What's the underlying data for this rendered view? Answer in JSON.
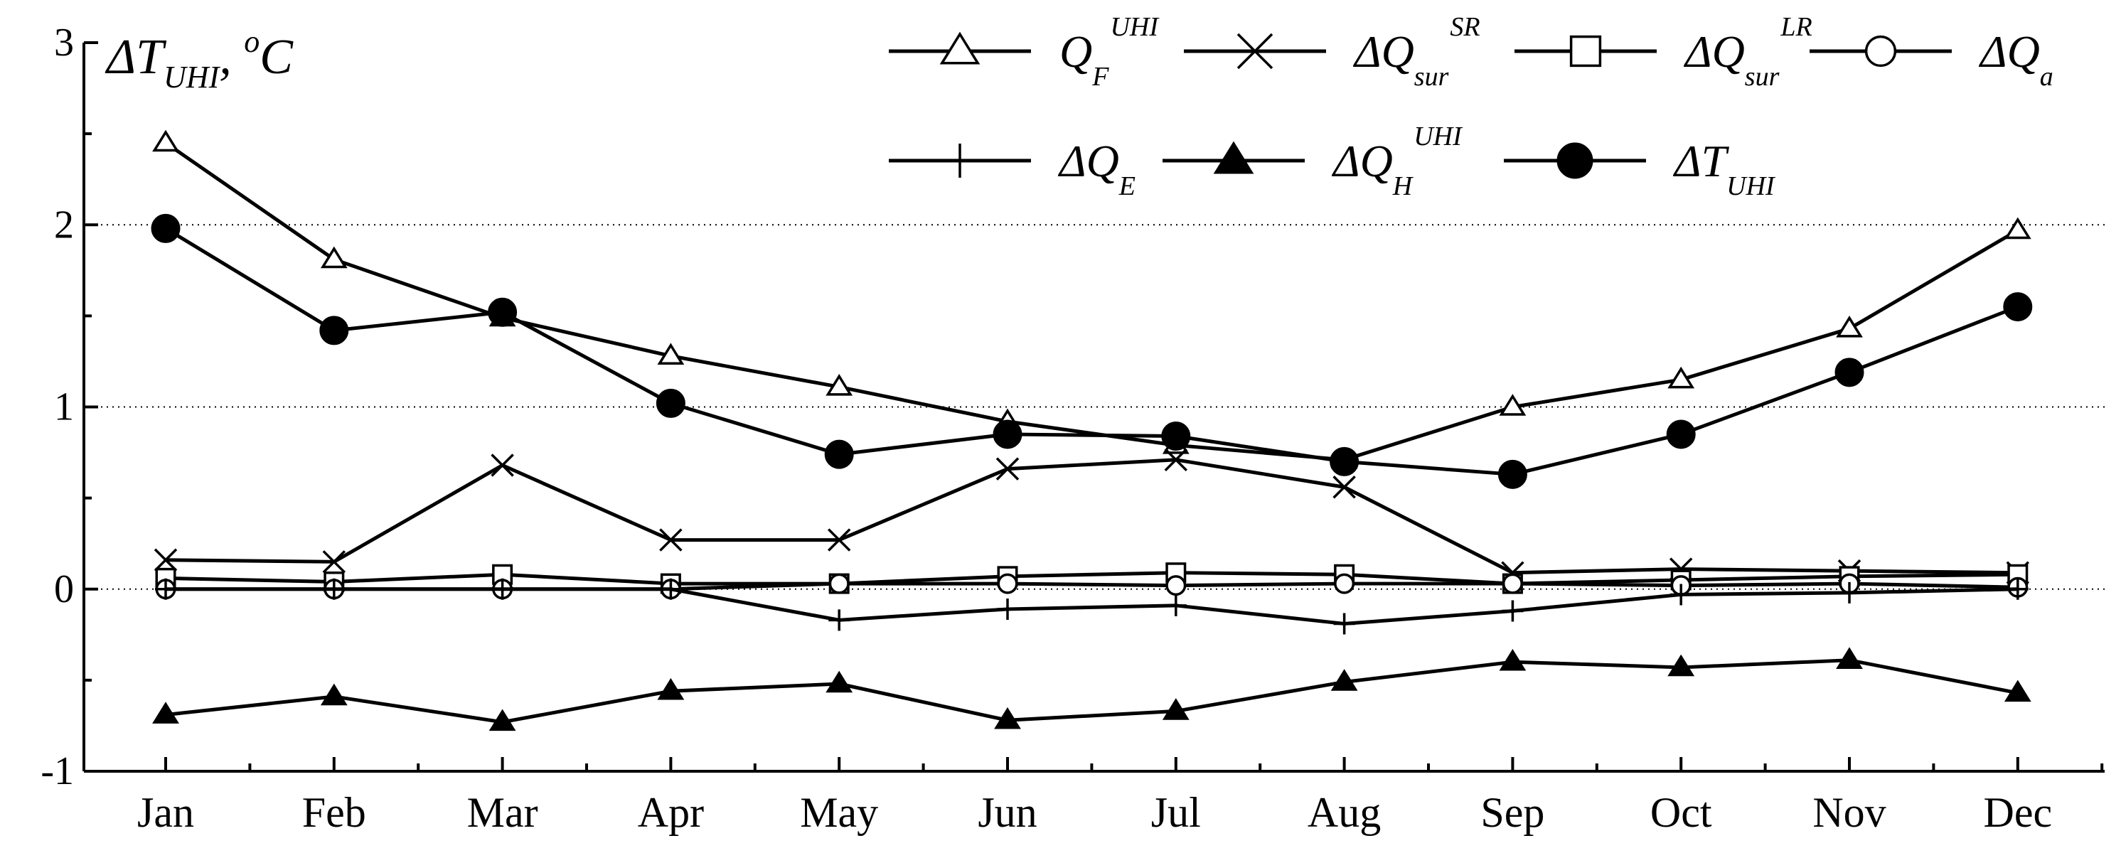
{
  "chart_data": {
    "type": "line",
    "ylabel": {
      "main": "ΔT",
      "sub": "UHI",
      "sep": ", ",
      "sup": "o",
      "unit": "C"
    },
    "xlabel": "",
    "categories": [
      "Jan",
      "Feb",
      "Mar",
      "Apr",
      "May",
      "Jun",
      "Jul",
      "Aug",
      "Sep",
      "Oct",
      "Nov",
      "Dec"
    ],
    "ylim": [
      -1,
      3
    ],
    "yticks": [
      -1,
      0,
      1,
      2,
      3
    ],
    "yticks_labels": [
      "-1",
      "0",
      "1",
      "2",
      "3"
    ],
    "gridlines_dotted_at": [
      0,
      1,
      2
    ],
    "legend_position": "top-right",
    "series": [
      {
        "key": "QF",
        "name": {
          "main": "Q",
          "sub": "F",
          "sup": "UHI"
        },
        "marker": "triangle-open",
        "values": [
          2.45,
          1.81,
          1.49,
          1.28,
          1.11,
          0.92,
          0.79,
          0.71,
          1.0,
          1.15,
          1.43,
          1.97
        ]
      },
      {
        "key": "Qsur_SR",
        "name": {
          "main": "ΔQ",
          "sub": "sur",
          "sup": "SR"
        },
        "marker": "cross",
        "values": [
          0.16,
          0.15,
          0.68,
          0.27,
          0.27,
          0.66,
          0.71,
          0.56,
          0.09,
          0.11,
          0.1,
          0.09
        ]
      },
      {
        "key": "Qsur_LR",
        "name": {
          "main": "ΔQ",
          "sub": "sur",
          "sup": "LR"
        },
        "marker": "square-open",
        "values": [
          0.06,
          0.04,
          0.08,
          0.03,
          0.03,
          0.07,
          0.09,
          0.08,
          0.03,
          0.05,
          0.07,
          0.08
        ]
      },
      {
        "key": "Qa",
        "name": {
          "main": "ΔQ",
          "sub": "a",
          "sup": ""
        },
        "marker": "circle-open",
        "values": [
          0.0,
          0.0,
          0.0,
          0.0,
          0.03,
          0.03,
          0.02,
          0.03,
          0.03,
          0.02,
          0.03,
          0.01
        ]
      },
      {
        "key": "QE",
        "name": {
          "main": "ΔQ",
          "sub": "E",
          "sup": ""
        },
        "marker": "plus",
        "values": [
          0.0,
          0.0,
          0.0,
          0.0,
          -0.17,
          -0.11,
          -0.09,
          -0.19,
          -0.12,
          -0.03,
          -0.02,
          0.0
        ]
      },
      {
        "key": "QH",
        "name": {
          "main": "ΔQ",
          "sub": "H",
          "sup": "UHI"
        },
        "marker": "triangle-filled",
        "values": [
          -0.69,
          -0.59,
          -0.73,
          -0.56,
          -0.52,
          -0.72,
          -0.67,
          -0.51,
          -0.4,
          -0.43,
          -0.39,
          -0.57
        ]
      },
      {
        "key": "TUHI",
        "name": {
          "main": "ΔT",
          "sub": "UHI",
          "sup": ""
        },
        "marker": "circle-filled",
        "values": [
          1.98,
          1.42,
          1.52,
          1.02,
          0.74,
          0.85,
          0.84,
          0.7,
          0.63,
          0.85,
          1.19,
          1.55
        ]
      }
    ]
  }
}
